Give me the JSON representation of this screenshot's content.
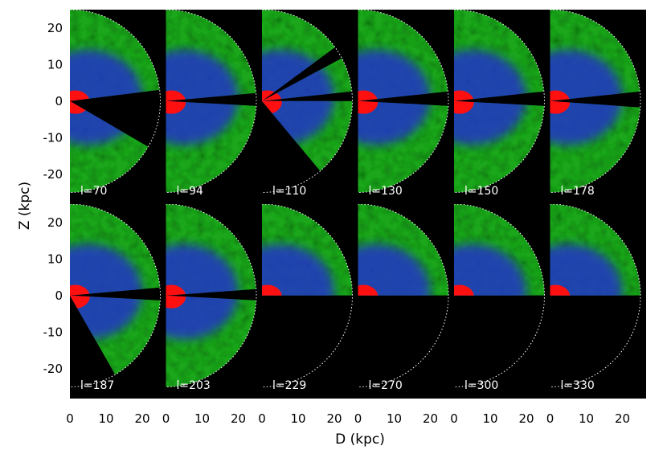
{
  "chart_data": {
    "type": "heatmap",
    "title": "",
    "xlabel": "D (kpc)",
    "ylabel": "Z (kpc)",
    "xlim": [
      0,
      26
    ],
    "ylim": [
      -25,
      25
    ],
    "x_ticks": [
      0,
      10,
      20
    ],
    "y_ticks": [
      20,
      10,
      0,
      -10,
      -20
    ],
    "grid": false,
    "colors": {
      "background": "#000000",
      "green": "#1fa61f",
      "blue": "#2435c8",
      "red": "#ff1010",
      "ring": "#ffffff"
    },
    "reference_circle_radius": 25,
    "panels": [
      {
        "label": "l=70",
        "wedges": [
          {
            "a1": 7,
            "a2": 90,
            "r": 25
          },
          {
            "a1": -90,
            "a2": -30,
            "r": 25
          }
        ]
      },
      {
        "label": "l=94",
        "wedges": [
          {
            "a1": 5,
            "a2": 90,
            "r": 25
          },
          {
            "a1": -90,
            "a2": -3,
            "r": 25
          }
        ]
      },
      {
        "label": "l=110",
        "wedges": [
          {
            "a1": 36,
            "a2": 90,
            "r": 25
          },
          {
            "a1": 6,
            "a2": 28,
            "r": 25
          },
          {
            "a1": -50,
            "a2": 0,
            "r": 25
          }
        ]
      },
      {
        "label": "l=130",
        "wedges": [
          {
            "a1": 6,
            "a2": 90,
            "r": 25
          },
          {
            "a1": -90,
            "a2": -3,
            "r": 25
          }
        ]
      },
      {
        "label": "l=150",
        "wedges": [
          {
            "a1": 6,
            "a2": 90,
            "r": 25
          },
          {
            "a1": -90,
            "a2": -3,
            "r": 25
          }
        ]
      },
      {
        "label": "l=178",
        "wedges": [
          {
            "a1": 6,
            "a2": 90,
            "r": 25
          },
          {
            "a1": -90,
            "a2": -4,
            "r": 25
          }
        ]
      },
      {
        "label": "l=187",
        "wedges": [
          {
            "a1": 5,
            "a2": 90,
            "r": 25
          },
          {
            "a1": -60,
            "a2": -3,
            "r": 25
          }
        ]
      },
      {
        "label": "l=203",
        "wedges": [
          {
            "a1": 4,
            "a2": 90,
            "r": 25
          },
          {
            "a1": -90,
            "a2": -3,
            "r": 25
          }
        ]
      },
      {
        "label": "l=229",
        "wedges": [
          {
            "a1": 0,
            "a2": 90,
            "r": 25
          }
        ]
      },
      {
        "label": "l=270",
        "wedges": [
          {
            "a1": 0,
            "a2": 90,
            "r": 25
          }
        ]
      },
      {
        "label": "l=300",
        "wedges": [
          {
            "a1": 0,
            "a2": 90,
            "r": 25
          }
        ]
      },
      {
        "label": "l=330",
        "wedges": [
          {
            "a1": 0,
            "a2": 90,
            "r": 25
          }
        ]
      }
    ]
  }
}
